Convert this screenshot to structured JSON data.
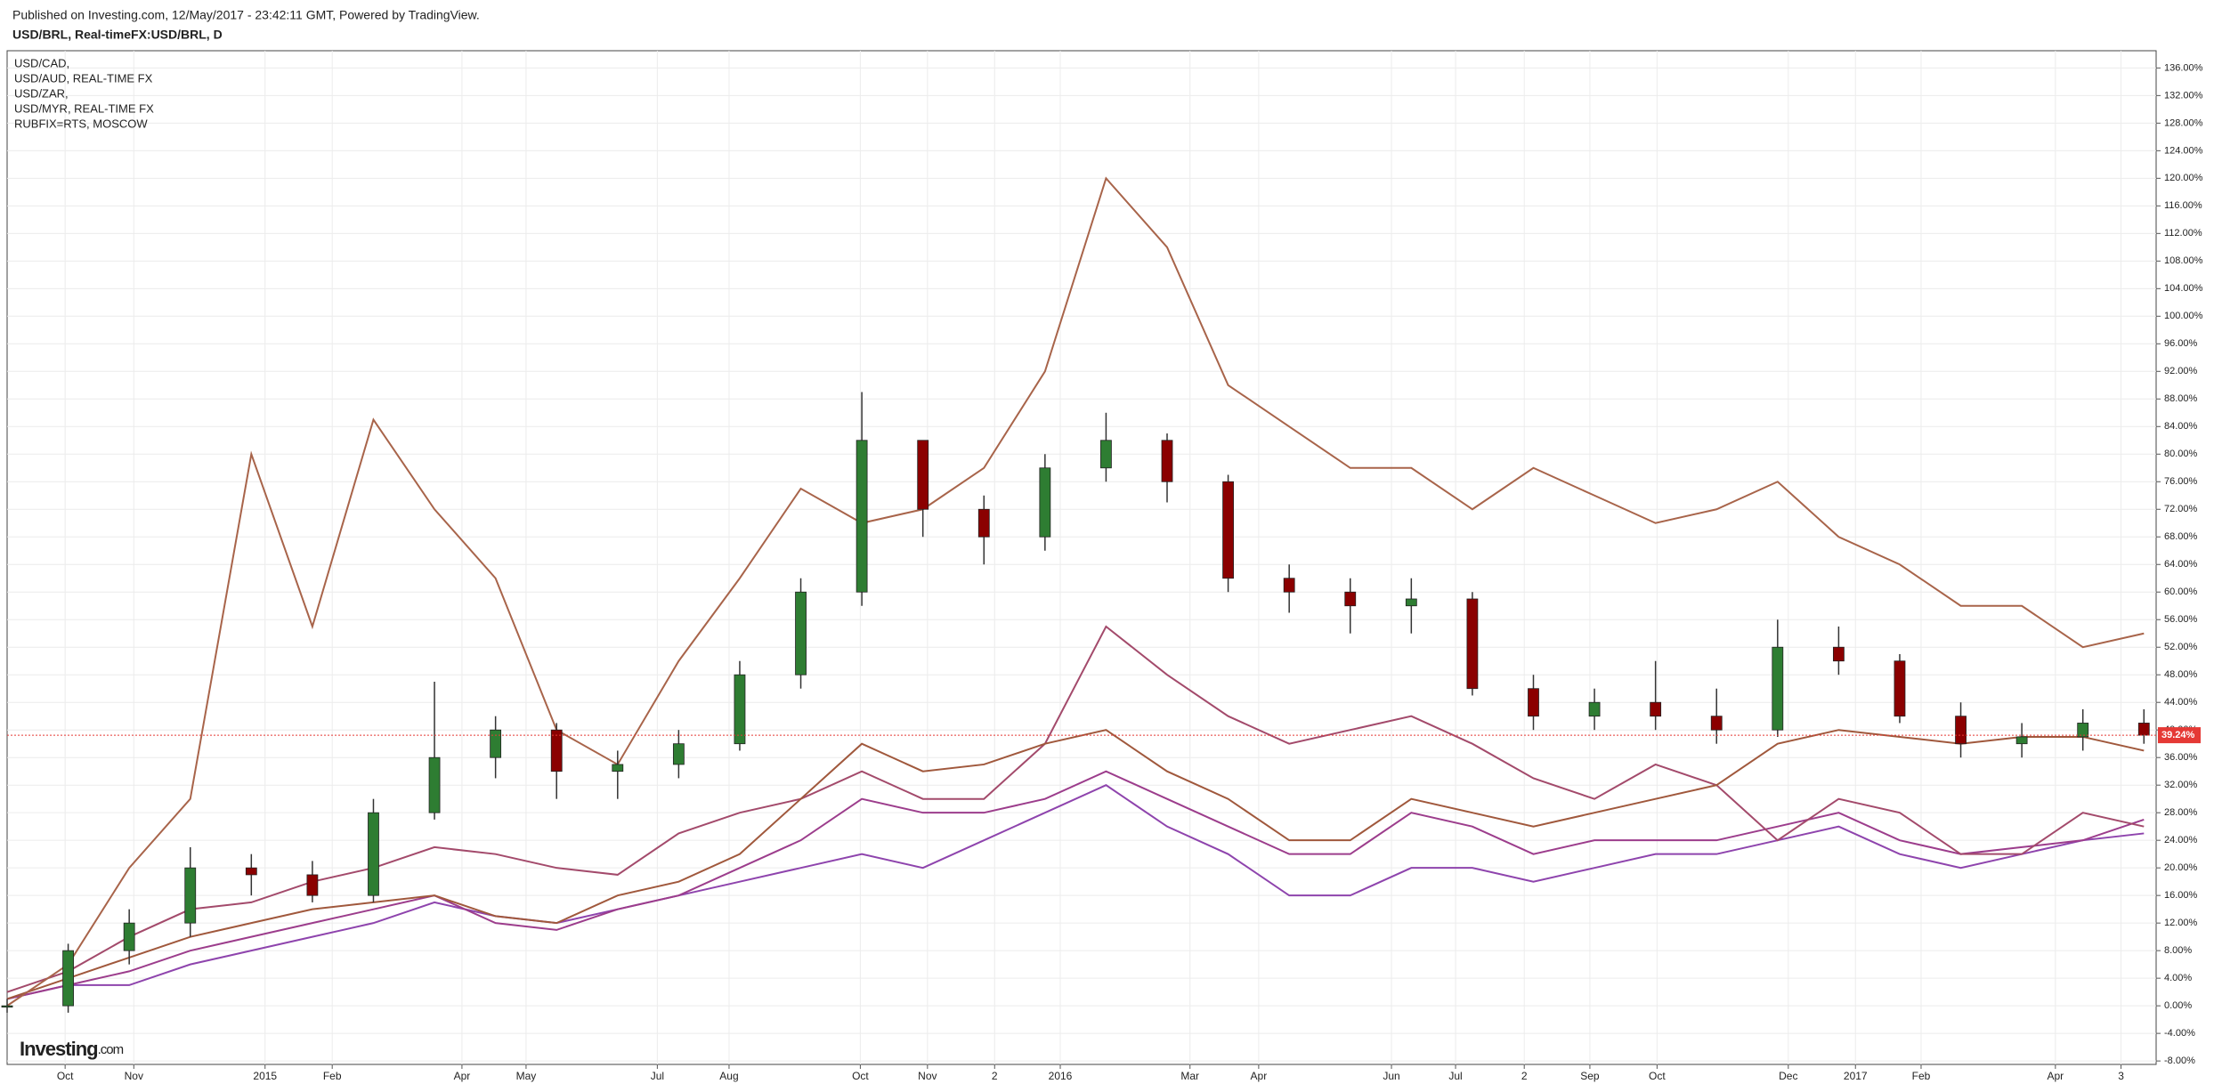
{
  "chart_data": {
    "type": "candlestick",
    "title": "Published on Investing.com, 12/May/2017 - 23:42:11 GMT, Powered by TradingView.",
    "subtitle": "USD/BRL, Real-timeFX:USD/BRL, D",
    "logo": "Investing",
    "logo_suffix": ".com",
    "x": [
      0,
      4,
      8,
      12,
      16,
      20,
      24,
      28,
      32,
      36,
      40,
      44,
      48,
      52,
      56,
      60,
      64,
      68,
      72,
      76,
      80,
      84,
      88,
      92,
      96,
      100,
      104,
      108,
      112,
      116,
      120,
      124,
      128,
      132,
      136,
      140
    ],
    "xlim": [
      0,
      140.8
    ],
    "xticks": [
      {
        "value": 3.8,
        "label": "Oct"
      },
      {
        "value": 8.3,
        "label": "Nov"
      },
      {
        "value": 16.9,
        "label": "2015"
      },
      {
        "value": 21.3,
        "label": "Feb"
      },
      {
        "value": 29.8,
        "label": "Apr"
      },
      {
        "value": 34.0,
        "label": "May"
      },
      {
        "value": 42.6,
        "label": "Jul"
      },
      {
        "value": 47.3,
        "label": "Aug"
      },
      {
        "value": 55.9,
        "label": "Oct"
      },
      {
        "value": 60.3,
        "label": "Nov"
      },
      {
        "value": 64.7,
        "label": "2"
      },
      {
        "value": 69.0,
        "label": "2016"
      },
      {
        "value": 77.5,
        "label": "Mar"
      },
      {
        "value": 82.0,
        "label": "Apr"
      },
      {
        "value": 90.7,
        "label": "Jun"
      },
      {
        "value": 94.9,
        "label": "Jul"
      },
      {
        "value": 99.4,
        "label": "2"
      },
      {
        "value": 103.7,
        "label": "Sep"
      },
      {
        "value": 108.1,
        "label": "Oct"
      },
      {
        "value": 116.7,
        "label": "Dec"
      },
      {
        "value": 121.1,
        "label": "2017"
      },
      {
        "value": 125.4,
        "label": "Feb"
      },
      {
        "value": 134.2,
        "label": "Apr"
      },
      {
        "value": 138.5,
        "label": "3"
      }
    ],
    "ylim": [
      -8.5,
      138.5
    ],
    "yticks": [
      {
        "value": -8,
        "label": "-8.00%"
      },
      {
        "value": -4,
        "label": "-4.00%"
      },
      {
        "value": 0,
        "label": "0.00%"
      },
      {
        "value": 4,
        "label": "4.00%"
      },
      {
        "value": 8,
        "label": "8.00%"
      },
      {
        "value": 12,
        "label": "12.00%"
      },
      {
        "value": 16,
        "label": "16.00%"
      },
      {
        "value": 20,
        "label": "20.00%"
      },
      {
        "value": 24,
        "label": "24.00%"
      },
      {
        "value": 28,
        "label": "28.00%"
      },
      {
        "value": 32,
        "label": "32.00%"
      },
      {
        "value": 36,
        "label": "36.00%"
      },
      {
        "value": 40,
        "label": "40.00%"
      },
      {
        "value": 44,
        "label": "44.00%"
      },
      {
        "value": 48,
        "label": "48.00%"
      },
      {
        "value": 52,
        "label": "52.00%"
      },
      {
        "value": 56,
        "label": "56.00%"
      },
      {
        "value": 60,
        "label": "60.00%"
      },
      {
        "value": 64,
        "label": "64.00%"
      },
      {
        "value": 68,
        "label": "68.00%"
      },
      {
        "value": 72,
        "label": "72.00%"
      },
      {
        "value": 76,
        "label": "76.00%"
      },
      {
        "value": 80,
        "label": "80.00%"
      },
      {
        "value": 84,
        "label": "84.00%"
      },
      {
        "value": 88,
        "label": "88.00%"
      },
      {
        "value": 92,
        "label": "92.00%"
      },
      {
        "value": 96,
        "label": "96.00%"
      },
      {
        "value": 100,
        "label": "100.00%"
      },
      {
        "value": 104,
        "label": "104.00%"
      },
      {
        "value": 108,
        "label": "108.00%"
      },
      {
        "value": 112,
        "label": "112.00%"
      },
      {
        "value": 116,
        "label": "116.00%"
      },
      {
        "value": 120,
        "label": "120.00%"
      },
      {
        "value": 124,
        "label": "124.00%"
      },
      {
        "value": 128,
        "label": "128.00%"
      },
      {
        "value": 132,
        "label": "132.00%"
      },
      {
        "value": 136,
        "label": "136.00%"
      }
    ],
    "grid": true,
    "up_color": "#2e7d32",
    "down_color": "#8b0000",
    "candles": {
      "open": [
        0,
        0,
        8,
        12,
        20,
        19,
        16,
        28,
        36,
        40,
        34,
        35,
        38,
        48,
        60,
        82,
        72,
        68,
        78,
        82,
        76,
        62,
        60,
        58,
        59,
        46,
        42,
        44,
        42,
        40,
        52,
        50,
        42,
        38,
        39,
        41
      ],
      "high": [
        1,
        9,
        14,
        23,
        22,
        21,
        30,
        47,
        42,
        41,
        37,
        40,
        50,
        62,
        89,
        82,
        74,
        80,
        86,
        83,
        77,
        64,
        62,
        62,
        60,
        48,
        46,
        50,
        46,
        56,
        55,
        51,
        44,
        41,
        43,
        43
      ],
      "low": [
        -1,
        -1,
        6,
        10,
        16,
        15,
        15,
        27,
        33,
        30,
        30,
        33,
        37,
        46,
        58,
        68,
        64,
        66,
        76,
        73,
        60,
        57,
        54,
        54,
        45,
        40,
        40,
        40,
        38,
        39,
        48,
        41,
        36,
        36,
        37,
        38
      ],
      "close": [
        0,
        8,
        12,
        20,
        19,
        16,
        28,
        36,
        40,
        34,
        35,
        38,
        48,
        60,
        82,
        72,
        68,
        78,
        82,
        76,
        62,
        60,
        58,
        59,
        46,
        42,
        44,
        42,
        40,
        52,
        50,
        42,
        38,
        39,
        41,
        39.24
      ],
      "last_label": "39.24%",
      "last_color": "#e53935"
    },
    "series": [
      {
        "name": "USD/CAD,",
        "color": "#8e44ad",
        "values": [
          1,
          3,
          3,
          6,
          8,
          10,
          12,
          15,
          13,
          12,
          14,
          16,
          18,
          20,
          22,
          20,
          24,
          28,
          32,
          26,
          22,
          16,
          16,
          20,
          20,
          18,
          20,
          22,
          22,
          24,
          26,
          22,
          20,
          22,
          24,
          25
        ]
      },
      {
        "name": "USD/AUD, REAL-TIME FX",
        "color": "#9c3d8c",
        "values": [
          1,
          3,
          5,
          8,
          10,
          12,
          14,
          16,
          12,
          11,
          14,
          16,
          20,
          24,
          30,
          28,
          28,
          30,
          34,
          30,
          26,
          22,
          22,
          28,
          26,
          22,
          24,
          24,
          24,
          26,
          28,
          24,
          22,
          23,
          24,
          27
        ]
      },
      {
        "name": "USD/ZAR,",
        "color": "#a34a6b",
        "values": [
          2,
          5,
          10,
          14,
          15,
          18,
          20,
          23,
          22,
          20,
          19,
          25,
          28,
          30,
          34,
          30,
          30,
          38,
          55,
          48,
          42,
          38,
          40,
          42,
          38,
          33,
          30,
          35,
          32,
          24,
          30,
          28,
          22,
          22,
          28,
          26
        ]
      },
      {
        "name": "USD/MYR, REAL-TIME FX",
        "color": "#a0583c",
        "values": [
          1,
          4,
          7,
          10,
          12,
          14,
          15,
          16,
          13,
          12,
          16,
          18,
          22,
          30,
          38,
          34,
          35,
          38,
          40,
          34,
          30,
          24,
          24,
          30,
          28,
          26,
          28,
          30,
          32,
          38,
          40,
          39,
          38,
          39,
          39,
          37
        ]
      },
      {
        "name": "RUBFIX=RTS, MOSCOW",
        "color": "#a8644a",
        "values": [
          0,
          6,
          20,
          30,
          80,
          55,
          85,
          72,
          62,
          40,
          35,
          50,
          62,
          75,
          70,
          72,
          78,
          92,
          120,
          110,
          90,
          84,
          78,
          78,
          72,
          78,
          74,
          70,
          72,
          76,
          68,
          64,
          58,
          58,
          52,
          54
        ]
      }
    ]
  }
}
